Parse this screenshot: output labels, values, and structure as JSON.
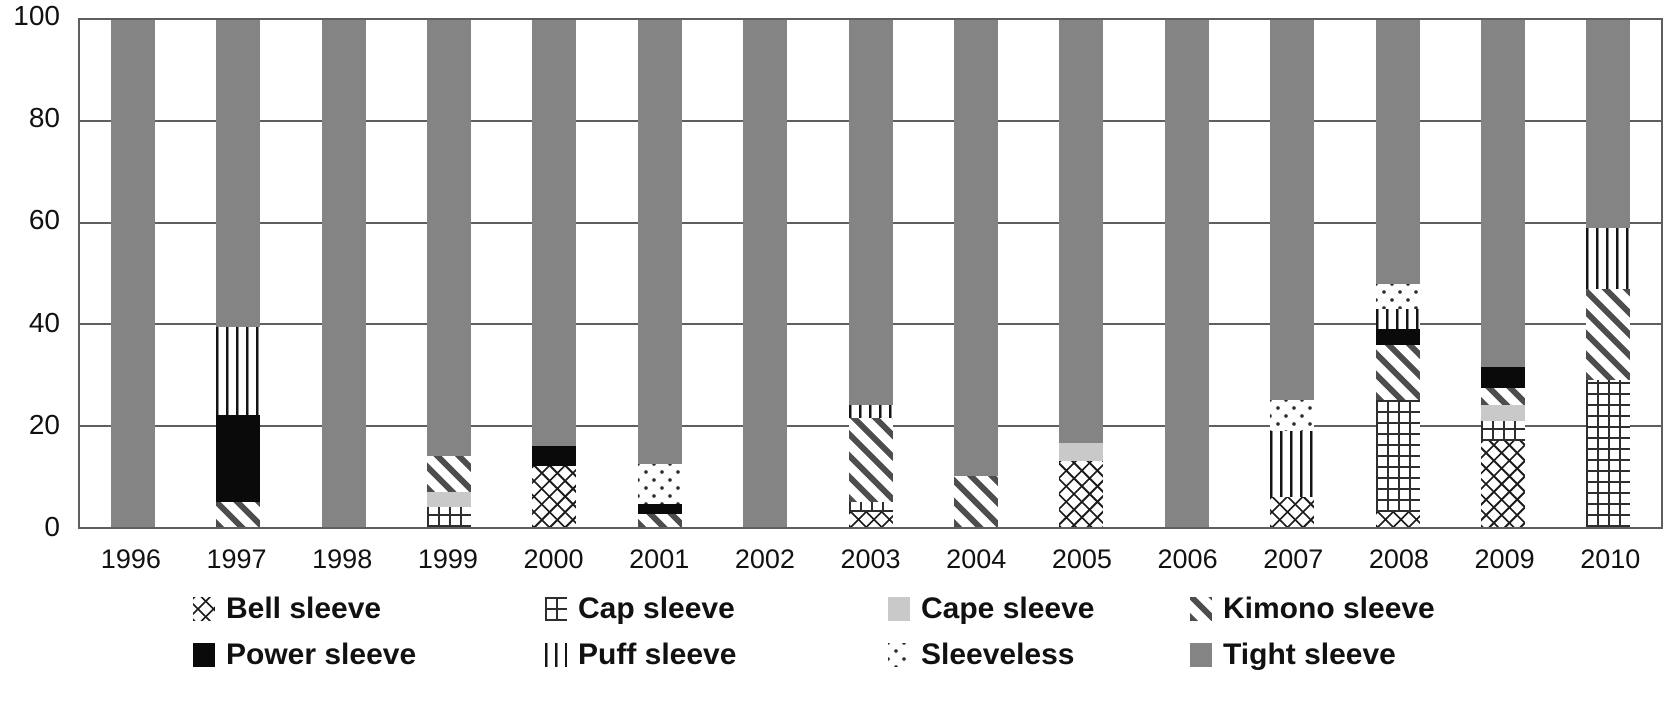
{
  "chart_data": {
    "type": "bar",
    "stacked": true,
    "normalized": true,
    "title": "",
    "xlabel": "",
    "ylabel": "",
    "ylim": [
      0,
      100
    ],
    "yticks": [
      0,
      20,
      40,
      60,
      80,
      100
    ],
    "grid": true,
    "legend_position": "bottom",
    "legend_columns": 4,
    "categories": [
      "1996",
      "1997",
      "1998",
      "1999",
      "2000",
      "2001",
      "2002",
      "2003",
      "2004",
      "2005",
      "2006",
      "2007",
      "2008",
      "2009",
      "2010"
    ],
    "series": [
      {
        "name": "Bell sleeve",
        "pattern": "xhatch",
        "values": [
          0,
          0,
          0,
          0,
          12,
          0,
          0,
          3,
          0,
          13,
          0,
          6,
          3,
          17,
          0
        ]
      },
      {
        "name": "Cap sleeve",
        "pattern": "grid",
        "values": [
          0,
          0,
          0,
          4,
          0,
          0,
          0,
          2,
          0,
          0,
          0,
          0,
          22,
          4,
          29
        ]
      },
      {
        "name": "Cape sleeve",
        "pattern": "solid-light",
        "values": [
          0,
          0,
          0,
          3,
          0,
          0,
          0,
          0,
          0,
          3.5,
          0,
          0,
          0,
          3,
          0
        ]
      },
      {
        "name": "Kimono sleeve",
        "pattern": "diag",
        "values": [
          0,
          5,
          0,
          7,
          0,
          2.5,
          0,
          16.5,
          10,
          0,
          0,
          0,
          11,
          3.5,
          18
        ]
      },
      {
        "name": "Power sleeve",
        "pattern": "solid-black",
        "values": [
          0,
          17,
          0,
          0,
          4,
          2,
          0,
          0,
          0,
          0,
          0,
          0,
          3,
          4,
          0
        ]
      },
      {
        "name": "Puff sleeve",
        "pattern": "vlines",
        "values": [
          0,
          17.5,
          0,
          0,
          0,
          0,
          0,
          2.5,
          0,
          0,
          0,
          13,
          4,
          0,
          12
        ]
      },
      {
        "name": "Sleeveless",
        "pattern": "dots",
        "values": [
          0,
          0,
          0,
          0,
          0,
          8,
          0,
          0,
          0,
          0,
          0,
          6,
          5,
          0,
          0
        ]
      },
      {
        "name": "Tight sleeve",
        "pattern": "solid-gray",
        "values": [
          100,
          60.5,
          100,
          86,
          84,
          87.5,
          100,
          76,
          90,
          83.5,
          100,
          75,
          52,
          68.5,
          41
        ]
      }
    ],
    "colors": {
      "tight_sleeve": "#848484",
      "cape_sleeve": "#c9c9c9",
      "power_sleeve": "#0a0a0a",
      "pattern_ink": "#2e2e2e",
      "gridline": "#5f5f5f",
      "background": "#ffffff"
    }
  }
}
